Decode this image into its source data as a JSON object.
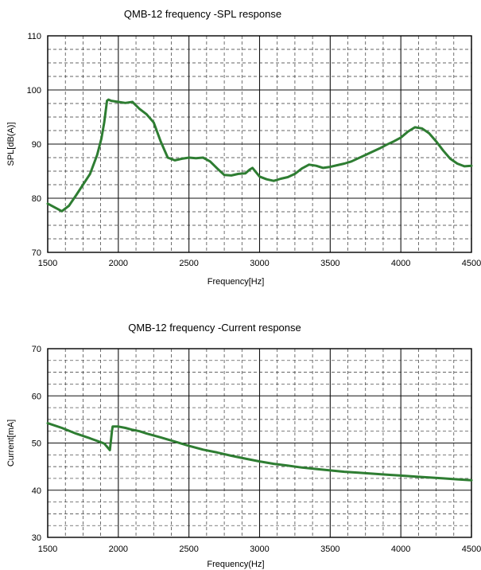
{
  "chart_data": [
    {
      "type": "line",
      "title": "QMB-12 frequency -SPL response",
      "xlabel": "Frequency[Hz]",
      "ylabel": "SPL[dB(A)]",
      "xlim": [
        1500,
        4500
      ],
      "ylim": [
        70,
        110
      ],
      "x_ticks": [
        "1500",
        "2000",
        "2500",
        "3000",
        "3500",
        "4000",
        "4500"
      ],
      "y_ticks": [
        "70",
        "80",
        "90",
        "100",
        "110"
      ],
      "grid": true,
      "line_color": "#2e7d32",
      "series": [
        {
          "x": [
            1500,
            1550,
            1600,
            1650,
            1700,
            1750,
            1800,
            1850,
            1880,
            1900,
            1920,
            1930,
            1950,
            2000,
            2050,
            2100,
            2150,
            2200,
            2250,
            2300,
            2350,
            2400,
            2450,
            2500,
            2550,
            2600,
            2650,
            2700,
            2750,
            2800,
            2850,
            2900,
            2930,
            2950,
            3000,
            3050,
            3100,
            3150,
            3200,
            3250,
            3300,
            3350,
            3400,
            3450,
            3500,
            3550,
            3600,
            3650,
            3700,
            3750,
            3800,
            3850,
            3900,
            3950,
            4000,
            4050,
            4100,
            4150,
            4200,
            4250,
            4300,
            4350,
            4400,
            4450,
            4500
          ],
          "y": [
            79,
            78.3,
            77.6,
            78.6,
            80.5,
            82.5,
            84.5,
            88,
            91,
            94,
            98,
            98.2,
            98,
            97.8,
            97.6,
            97.8,
            96.5,
            95.5,
            94,
            90.5,
            87.5,
            87,
            87.3,
            87.5,
            87.4,
            87.5,
            86.8,
            85.5,
            84.3,
            84.2,
            84.5,
            84.6,
            85.3,
            85.6,
            84,
            83.5,
            83.2,
            83.6,
            83.9,
            84.5,
            85.5,
            86.2,
            86,
            85.6,
            85.8,
            86.1,
            86.4,
            86.8,
            87.4,
            88,
            88.6,
            89.2,
            89.9,
            90.5,
            91.2,
            92.3,
            93.1,
            92.9,
            92,
            90.5,
            88.8,
            87.3,
            86.4,
            85.9,
            86
          ]
        }
      ]
    },
    {
      "type": "line",
      "title": "QMB-12 frequency -Current response",
      "xlabel": "Frequency(Hz]",
      "ylabel": "Current[mA]",
      "xlim": [
        1500,
        4500
      ],
      "ylim": [
        30,
        70
      ],
      "x_ticks": [
        "1500",
        "2000",
        "2500",
        "3000",
        "3500",
        "4000",
        "4500"
      ],
      "y_ticks": [
        "30",
        "40",
        "50",
        "60",
        "70"
      ],
      "grid": true,
      "line_color": "#2e7d32",
      "series": [
        {
          "x": [
            1500,
            1600,
            1700,
            1800,
            1900,
            1940,
            1955,
            1960,
            2000,
            2050,
            2100,
            2150,
            2200,
            2300,
            2400,
            2500,
            2600,
            2700,
            2800,
            2900,
            3000,
            3100,
            3200,
            3300,
            3400,
            3500,
            3600,
            3700,
            3800,
            3900,
            4000,
            4100,
            4200,
            4300,
            4400,
            4500
          ],
          "y": [
            54.2,
            53.2,
            52,
            51,
            49.9,
            48.5,
            52.5,
            53.5,
            53.5,
            53.2,
            52.8,
            52.5,
            52,
            51.2,
            50.3,
            49.4,
            48.6,
            48,
            47.3,
            46.7,
            46.1,
            45.6,
            45.2,
            44.8,
            44.5,
            44.2,
            43.9,
            43.7,
            43.5,
            43.3,
            43.1,
            42.9,
            42.7,
            42.5,
            42.3,
            42.1
          ]
        }
      ]
    }
  ]
}
